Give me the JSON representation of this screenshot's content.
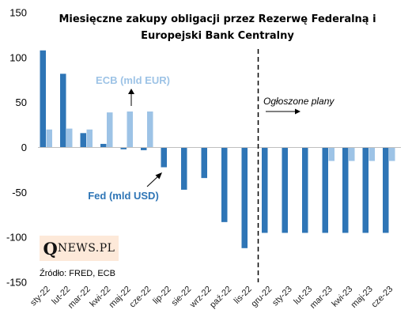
{
  "chart_data": {
    "type": "bar",
    "title_lines": [
      "Miesięczne zakupy obligacji przez Rezerwę Federalną i",
      "Europejski Bank Centralny"
    ],
    "categories": [
      "sty-22",
      "lut-22",
      "mar-22",
      "kwi-22",
      "maj-22",
      "cze-22",
      "lip-22",
      "sie-22",
      "wrz-22",
      "paź-22",
      "lis-22",
      "gru-22",
      "sty-23",
      "lut-23",
      "mar-23",
      "kwi-23",
      "maj-23",
      "cze-23"
    ],
    "series": [
      {
        "name": "Fed (mld USD)",
        "color": "#2e75b6",
        "values": [
          108,
          82,
          16,
          4,
          -2,
          -3,
          -22,
          -47,
          -34,
          -83,
          -112,
          -95,
          -95,
          -95,
          -95,
          -95,
          -95,
          -95
        ]
      },
      {
        "name": "ECB (mld EUR)",
        "color": "#9dc3e6",
        "values": [
          20,
          21,
          20,
          39,
          40,
          40,
          0,
          0,
          0,
          0,
          0,
          0,
          0,
          0,
          -15,
          -15,
          -15,
          -15
        ]
      }
    ],
    "ylim": [
      -150,
      150
    ],
    "yticks": [
      150,
      100,
      50,
      0,
      -50,
      -100,
      -150
    ],
    "grid": false,
    "legend": "inline labels",
    "divider_after_category": "lis-22",
    "annotation": "Ogłoszone plany"
  },
  "logo": {
    "q": "Q",
    "rest": "NEWS.PL"
  },
  "source": "Źródło: FRED, ECB"
}
